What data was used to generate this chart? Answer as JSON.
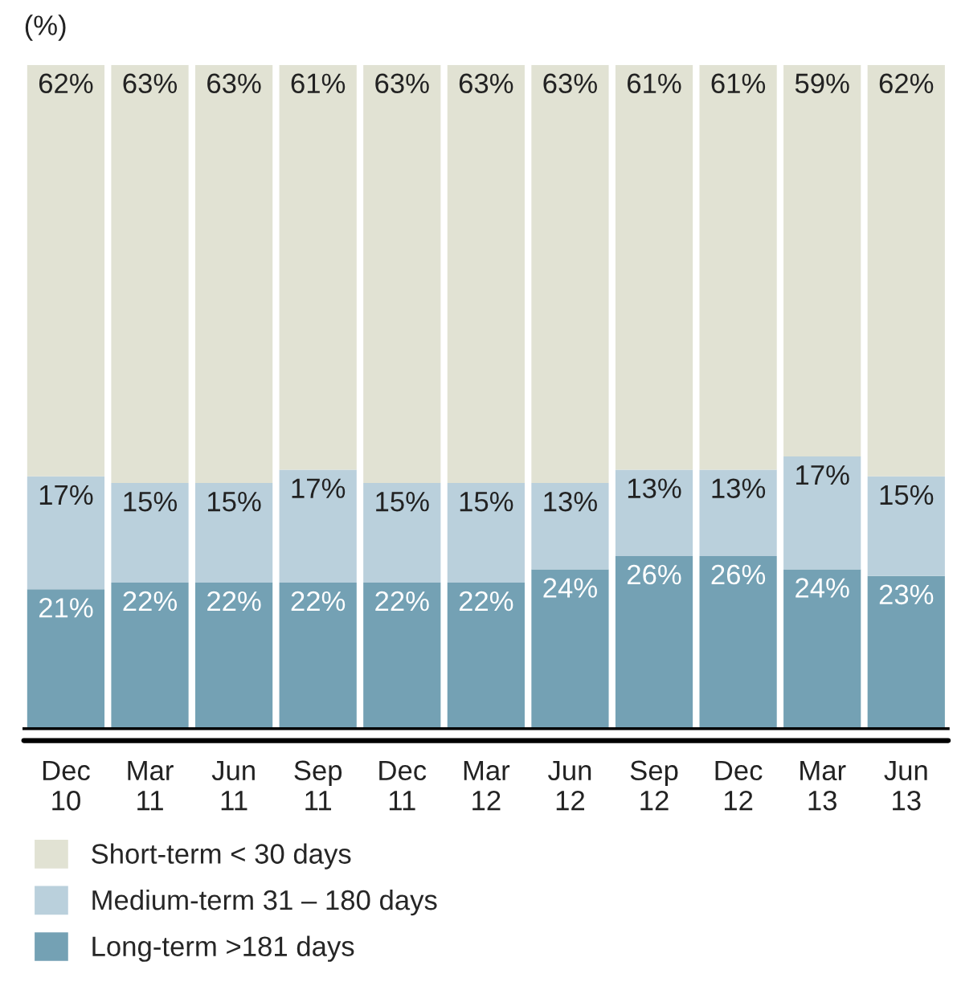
{
  "chart_data": {
    "type": "bar",
    "stacked": true,
    "ylabel": "(%)",
    "categories": [
      "Dec\n10",
      "Mar\n11",
      "Jun\n11",
      "Sep\n11",
      "Dec\n11",
      "Mar\n12",
      "Jun\n12",
      "Sep\n12",
      "Dec\n12",
      "Mar\n13",
      "Jun\n13"
    ],
    "series": [
      {
        "name": "Long-term >181 days",
        "color": "#74a1b4",
        "values": [
          21,
          22,
          22,
          22,
          22,
          22,
          24,
          26,
          26,
          24,
          23
        ],
        "value_labels": [
          "21%",
          "22%",
          "22%",
          "22%",
          "22%",
          "22%",
          "24%",
          "26%",
          "26%",
          "24%",
          "23%"
        ]
      },
      {
        "name": "Medium-term 31 – 180 days",
        "color": "#bad0dc",
        "values": [
          17,
          15,
          15,
          17,
          15,
          15,
          13,
          13,
          13,
          17,
          15
        ],
        "value_labels": [
          "17%",
          "15%",
          "15%",
          "17%",
          "15%",
          "15%",
          "13%",
          "13%",
          "13%",
          "17%",
          "15%"
        ]
      },
      {
        "name": "Short-term < 30 days",
        "color": "#e1e2d3",
        "values": [
          62,
          63,
          63,
          61,
          63,
          63,
          63,
          61,
          61,
          59,
          62
        ],
        "value_labels": [
          "62%",
          "63%",
          "63%",
          "61%",
          "63%",
          "63%",
          "63%",
          "61%",
          "61%",
          "59%",
          "62%"
        ]
      }
    ],
    "legend": "bottom",
    "grid": false
  }
}
